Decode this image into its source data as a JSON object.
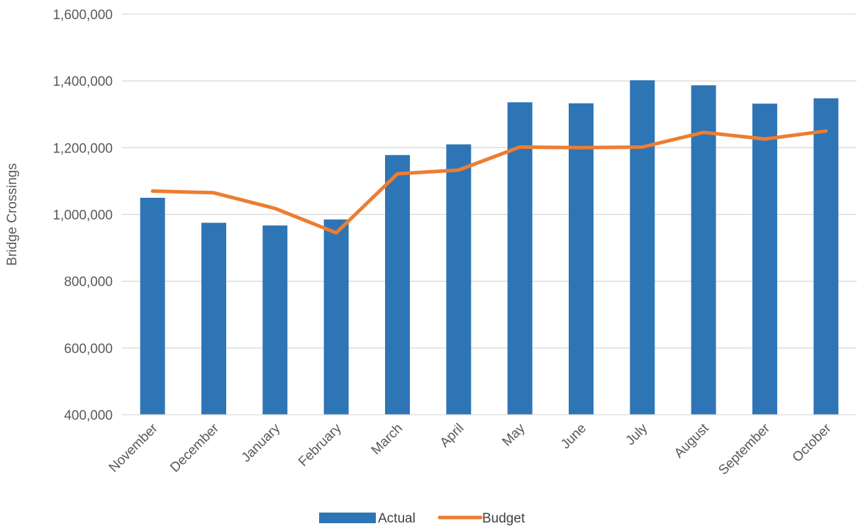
{
  "chart_data": {
    "type": "bar",
    "title": "",
    "xlabel": "",
    "ylabel": "Bridge Crossings",
    "ylim": [
      400000,
      1600000
    ],
    "yticks": [
      400000,
      600000,
      800000,
      1000000,
      1200000,
      1400000,
      1600000
    ],
    "ytick_labels": [
      "400,000",
      "600,000",
      "800,000",
      "1,000,000",
      "1,200,000",
      "1,400,000",
      "1,600,000"
    ],
    "categories": [
      "November",
      "December",
      "January",
      "February",
      "March",
      "April",
      "May",
      "June",
      "July",
      "August",
      "September",
      "October"
    ],
    "series": [
      {
        "name": "Actual",
        "type": "bar",
        "color": "#2E75B6",
        "values": [
          1050000,
          975000,
          967000,
          985000,
          1178000,
          1210000,
          1336000,
          1333000,
          1402000,
          1387000,
          1332000,
          1348000
        ]
      },
      {
        "name": "Budget",
        "type": "line",
        "color": "#ED7D31",
        "values": [
          1070000,
          1065000,
          1018000,
          945000,
          1122000,
          1133000,
          1202000,
          1200000,
          1202000,
          1246000,
          1226000,
          1250000
        ]
      }
    ],
    "grid": true,
    "legend_position": "bottom"
  }
}
